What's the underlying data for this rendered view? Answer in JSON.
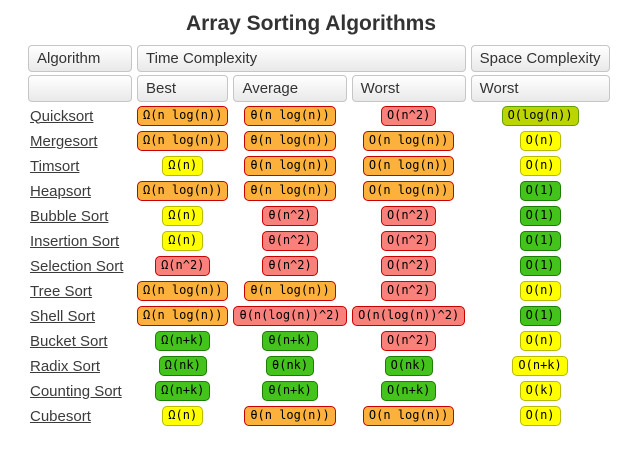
{
  "title": "Array Sorting Algorithms",
  "colors": {
    "orange": {
      "bg": "#FBB13B",
      "border": "#C80000"
    },
    "red": {
      "bg": "#F8817B",
      "border": "#C80000"
    },
    "yellow": {
      "bg": "#FFFF00",
      "border": "#B9BB00"
    },
    "chartreuse": {
      "bg": "#BCD501",
      "border": "#5EA000"
    },
    "green": {
      "bg": "#43C31B",
      "border": "#1B7E00"
    }
  },
  "table": {
    "header": {
      "algorithm": "Algorithm",
      "time": "Time Complexity",
      "space": "Space Complexity",
      "empty": "",
      "best": "Best",
      "average": "Average",
      "worst": "Worst",
      "space_worst": "Worst"
    },
    "rows": [
      {
        "algorithm": "Quicksort",
        "best": {
          "text": "Ω(n log(n))",
          "color": "orange"
        },
        "average": {
          "text": "θ(n log(n))",
          "color": "orange"
        },
        "worst": {
          "text": "O(n^2)",
          "color": "red"
        },
        "space": {
          "text": "O(log(n))",
          "color": "chartreuse"
        }
      },
      {
        "algorithm": "Mergesort",
        "best": {
          "text": "Ω(n log(n))",
          "color": "orange"
        },
        "average": {
          "text": "θ(n log(n))",
          "color": "orange"
        },
        "worst": {
          "text": "O(n log(n))",
          "color": "orange"
        },
        "space": {
          "text": "O(n)",
          "color": "yellow"
        }
      },
      {
        "algorithm": "Timsort",
        "best": {
          "text": "Ω(n)",
          "color": "yellow"
        },
        "average": {
          "text": "θ(n log(n))",
          "color": "orange"
        },
        "worst": {
          "text": "O(n log(n))",
          "color": "orange"
        },
        "space": {
          "text": "O(n)",
          "color": "yellow"
        }
      },
      {
        "algorithm": "Heapsort",
        "best": {
          "text": "Ω(n log(n))",
          "color": "orange"
        },
        "average": {
          "text": "θ(n log(n))",
          "color": "orange"
        },
        "worst": {
          "text": "O(n log(n))",
          "color": "orange"
        },
        "space": {
          "text": "O(1)",
          "color": "green"
        }
      },
      {
        "algorithm": "Bubble Sort",
        "best": {
          "text": "Ω(n)",
          "color": "yellow"
        },
        "average": {
          "text": "θ(n^2)",
          "color": "red"
        },
        "worst": {
          "text": "O(n^2)",
          "color": "red"
        },
        "space": {
          "text": "O(1)",
          "color": "green"
        }
      },
      {
        "algorithm": "Insertion Sort",
        "best": {
          "text": "Ω(n)",
          "color": "yellow"
        },
        "average": {
          "text": "θ(n^2)",
          "color": "red"
        },
        "worst": {
          "text": "O(n^2)",
          "color": "red"
        },
        "space": {
          "text": "O(1)",
          "color": "green"
        }
      },
      {
        "algorithm": "Selection Sort",
        "best": {
          "text": "Ω(n^2)",
          "color": "red"
        },
        "average": {
          "text": "θ(n^2)",
          "color": "red"
        },
        "worst": {
          "text": "O(n^2)",
          "color": "red"
        },
        "space": {
          "text": "O(1)",
          "color": "green"
        }
      },
      {
        "algorithm": "Tree Sort",
        "best": {
          "text": "Ω(n log(n))",
          "color": "orange"
        },
        "average": {
          "text": "θ(n log(n))",
          "color": "orange"
        },
        "worst": {
          "text": "O(n^2)",
          "color": "red"
        },
        "space": {
          "text": "O(n)",
          "color": "yellow"
        }
      },
      {
        "algorithm": "Shell Sort",
        "best": {
          "text": "Ω(n log(n))",
          "color": "orange"
        },
        "average": {
          "text": "θ(n(log(n))^2)",
          "color": "red"
        },
        "worst": {
          "text": "O(n(log(n))^2)",
          "color": "red"
        },
        "space": {
          "text": "O(1)",
          "color": "green"
        }
      },
      {
        "algorithm": "Bucket Sort",
        "best": {
          "text": "Ω(n+k)",
          "color": "green"
        },
        "average": {
          "text": "θ(n+k)",
          "color": "green"
        },
        "worst": {
          "text": "O(n^2)",
          "color": "red"
        },
        "space": {
          "text": "O(n)",
          "color": "yellow"
        }
      },
      {
        "algorithm": "Radix Sort",
        "best": {
          "text": "Ω(nk)",
          "color": "green"
        },
        "average": {
          "text": "θ(nk)",
          "color": "green"
        },
        "worst": {
          "text": "O(nk)",
          "color": "green"
        },
        "space": {
          "text": "O(n+k)",
          "color": "yellow"
        }
      },
      {
        "algorithm": "Counting Sort",
        "best": {
          "text": "Ω(n+k)",
          "color": "green"
        },
        "average": {
          "text": "θ(n+k)",
          "color": "green"
        },
        "worst": {
          "text": "O(n+k)",
          "color": "green"
        },
        "space": {
          "text": "O(k)",
          "color": "yellow"
        }
      },
      {
        "algorithm": "Cubesort",
        "best": {
          "text": "Ω(n)",
          "color": "yellow"
        },
        "average": {
          "text": "θ(n log(n))",
          "color": "orange"
        },
        "worst": {
          "text": "O(n log(n))",
          "color": "orange"
        },
        "space": {
          "text": "O(n)",
          "color": "yellow"
        }
      }
    ]
  }
}
